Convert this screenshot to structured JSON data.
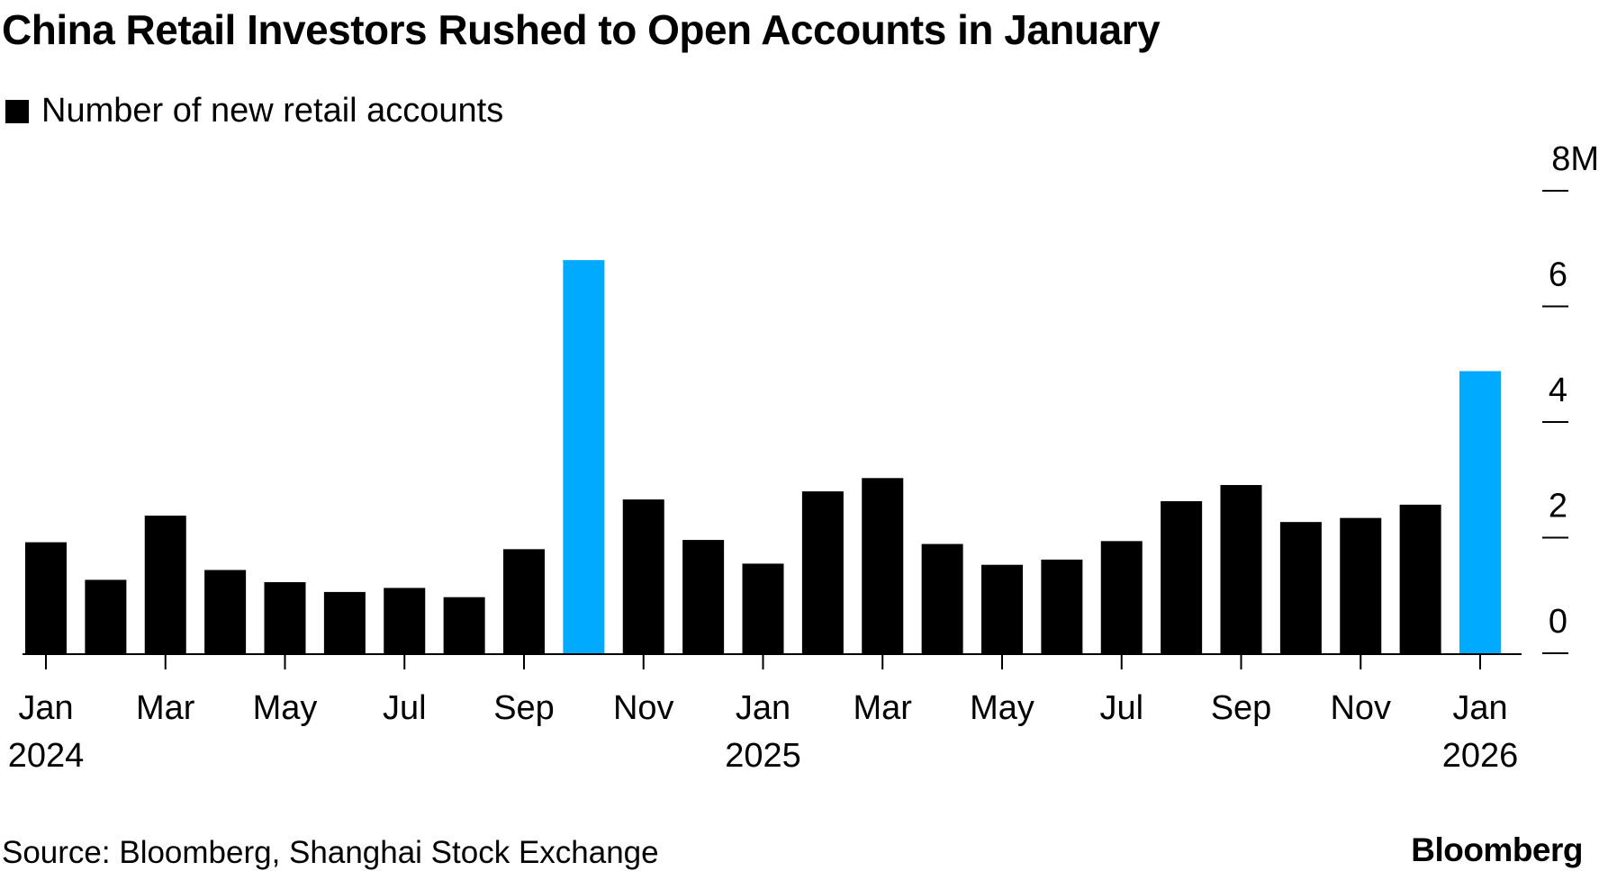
{
  "chart_data": {
    "type": "bar",
    "title": "China Retail Investors Rushed to Open Accounts in January",
    "legend": [
      {
        "label": "Number of new retail accounts",
        "color": "#000000"
      }
    ],
    "legend_placement": "top-left",
    "categories": [
      "Jan 2024",
      "Feb 2024",
      "Mar 2024",
      "Apr 2024",
      "May 2024",
      "Jun 2024",
      "Jul 2024",
      "Aug 2024",
      "Sep 2024",
      "Oct 2024",
      "Nov 2024",
      "Dec 2024",
      "Jan 2025",
      "Feb 2025",
      "Mar 2025",
      "Apr 2025",
      "May 2025",
      "Jun 2025",
      "Jul 2025",
      "Aug 2025",
      "Sep 2025",
      "Oct 2025",
      "Nov 2025",
      "Dec 2025",
      "Jan 2026"
    ],
    "values": [
      1.92,
      1.27,
      2.38,
      1.44,
      1.23,
      1.06,
      1.13,
      0.97,
      1.8,
      6.8,
      2.66,
      1.96,
      1.55,
      2.8,
      3.03,
      1.89,
      1.53,
      1.62,
      1.94,
      2.63,
      2.91,
      2.27,
      2.34,
      2.57,
      4.88
    ],
    "highlight_indices": [
      9,
      24
    ],
    "colors": {
      "default": "#000000",
      "highlight": "#00AAFF"
    },
    "ylim": [
      0,
      8
    ],
    "yticks": [
      {
        "value": 0,
        "label": "0"
      },
      {
        "value": 2,
        "label": "2"
      },
      {
        "value": 4,
        "label": "4"
      },
      {
        "value": 6,
        "label": "6"
      },
      {
        "value": 8,
        "label": "8M"
      }
    ],
    "xticks": [
      {
        "index": 0,
        "label": "Jan",
        "year": "2024"
      },
      {
        "index": 2,
        "label": "Mar",
        "year": ""
      },
      {
        "index": 4,
        "label": "May",
        "year": ""
      },
      {
        "index": 6,
        "label": "Jul",
        "year": ""
      },
      {
        "index": 8,
        "label": "Sep",
        "year": ""
      },
      {
        "index": 10,
        "label": "Nov",
        "year": ""
      },
      {
        "index": 12,
        "label": "Jan",
        "year": "2025"
      },
      {
        "index": 14,
        "label": "Mar",
        "year": ""
      },
      {
        "index": 16,
        "label": "May",
        "year": ""
      },
      {
        "index": 18,
        "label": "Jul",
        "year": ""
      },
      {
        "index": 20,
        "label": "Sep",
        "year": ""
      },
      {
        "index": 22,
        "label": "Nov",
        "year": ""
      },
      {
        "index": 24,
        "label": "Jan",
        "year": "2026"
      }
    ],
    "yaxis_side": "right",
    "grid": false,
    "xlabel": "",
    "ylabel": "Number of new retail accounts (millions)"
  },
  "footer": {
    "source": "Source: Bloomberg, Shanghai Stock Exchange",
    "brand": "Bloomberg"
  }
}
